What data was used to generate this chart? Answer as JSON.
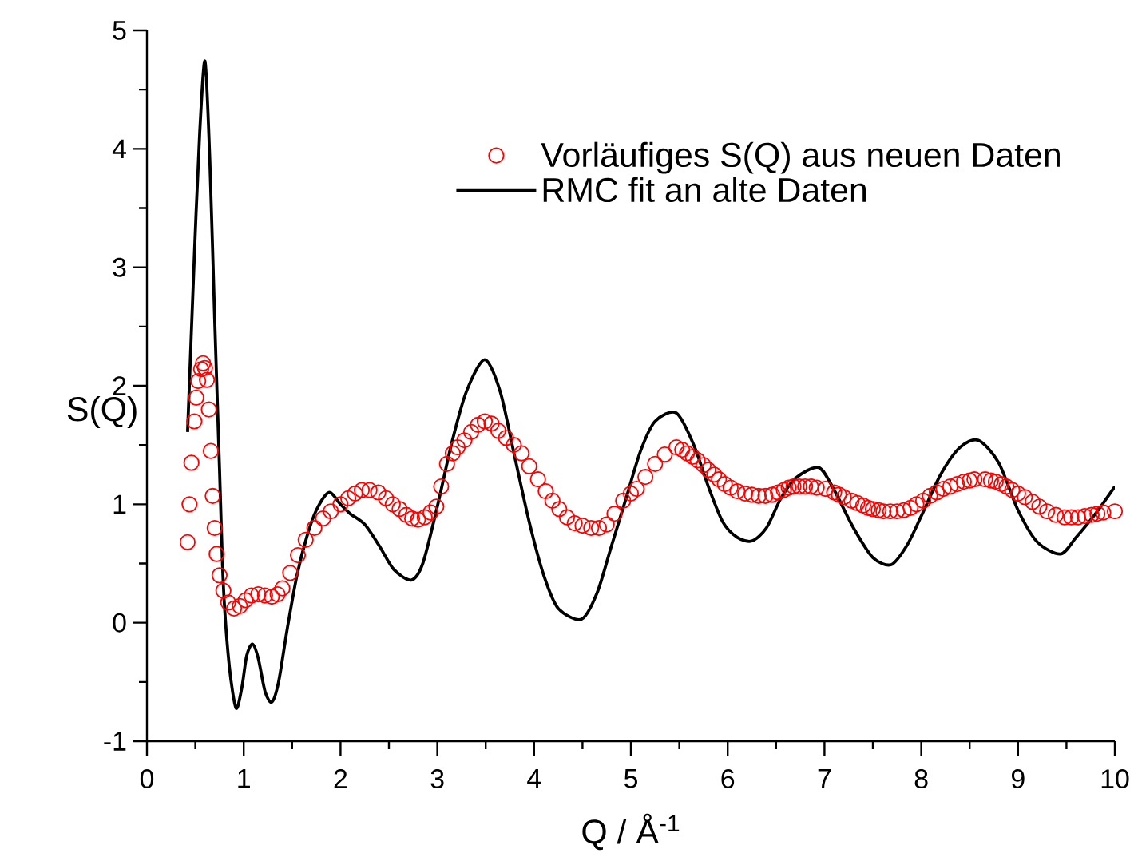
{
  "chart_data": {
    "type": "scatter",
    "xlabel": "Q / Å$^{-1}$",
    "ylabel": "S(Q)",
    "xlim": [
      0,
      10
    ],
    "ylim": [
      -1,
      5
    ],
    "xticks": [
      0,
      {
        "value": 0.5,
        "label": null
      },
      1,
      {
        "value": 1.5,
        "label": null
      },
      2,
      {
        "value": 2.5,
        "label": null
      },
      3,
      {
        "value": 3.5,
        "label": null
      },
      4,
      {
        "value": 4.5,
        "label": null
      },
      5,
      {
        "value": 5.5,
        "label": null
      },
      6,
      {
        "value": 6.5,
        "label": null
      },
      7,
      {
        "value": 7.5,
        "label": null
      },
      8,
      {
        "value": 8.5,
        "label": null
      },
      9,
      {
        "value": 9.5,
        "label": null
      },
      10
    ],
    "yticks": [
      -1,
      {
        "value": -0.5,
        "label": null
      },
      0,
      {
        "value": 0.5,
        "label": null
      },
      1,
      {
        "value": 1.5,
        "label": null
      },
      2,
      {
        "value": 2.5,
        "label": null
      },
      3,
      {
        "value": 3.5,
        "label": null
      },
      4,
      {
        "value": 4.5,
        "label": null
      },
      5
    ],
    "legend": "top right",
    "marker": "circle",
    "series": [
      {
        "name": "Vorläufiges S(Q) aus neuen Daten",
        "color": "#ff0000",
        "x": [
          0.42,
          0.44,
          0.46,
          0.49,
          0.51,
          0.53,
          0.56,
          0.58,
          0.6,
          0.62,
          0.64,
          0.66,
          0.68,
          0.7,
          0.72,
          0.75,
          0.79,
          0.84,
          0.9,
          0.96,
          1.02,
          1.08,
          1.15,
          1.22,
          1.29,
          1.35,
          1.4,
          1.48,
          1.56,
          1.64,
          1.73,
          1.82,
          1.9,
          2.0,
          2.08,
          2.15,
          2.22,
          2.3,
          2.39,
          2.47,
          2.54,
          2.61,
          2.68,
          2.74,
          2.8,
          2.87,
          2.93,
          2.99,
          3.04,
          3.1,
          3.16,
          3.21,
          3.28,
          3.35,
          3.42,
          3.49,
          3.56,
          3.63,
          3.71,
          3.79,
          3.87,
          3.95,
          4.04,
          4.12,
          4.19,
          4.26,
          4.34,
          4.42,
          4.5,
          4.59,
          4.67,
          4.75,
          4.83,
          4.92,
          5.0,
          5.06,
          5.15,
          5.25,
          5.35,
          5.47,
          5.53,
          5.58,
          5.64,
          5.69,
          5.75,
          5.8,
          5.86,
          5.91,
          5.97,
          6.03,
          6.1,
          6.18,
          6.25,
          6.32,
          6.39,
          6.46,
          6.52,
          6.58,
          6.63,
          6.68,
          6.74,
          6.8,
          6.86,
          6.92,
          7.01,
          7.1,
          7.15,
          7.2,
          7.28,
          7.34,
          7.4,
          7.45,
          7.5,
          7.56,
          7.61,
          7.68,
          7.75,
          7.82,
          7.89,
          7.95,
          8.02,
          8.09,
          8.16,
          8.23,
          8.3,
          8.37,
          8.44,
          8.5,
          8.55,
          8.66,
          8.72,
          8.77,
          8.83,
          8.88,
          8.94,
          9.0,
          9.07,
          9.15,
          9.22,
          9.3,
          9.39,
          9.48,
          9.55,
          9.62,
          9.69,
          9.76,
          9.82,
          9.88,
          10.0
        ],
        "values": [
          0.68,
          1.0,
          1.35,
          1.7,
          1.9,
          2.04,
          2.14,
          2.19,
          2.15,
          2.05,
          1.8,
          1.45,
          1.07,
          0.8,
          0.58,
          0.4,
          0.27,
          0.17,
          0.12,
          0.14,
          0.19,
          0.23,
          0.24,
          0.23,
          0.22,
          0.24,
          0.29,
          0.42,
          0.57,
          0.7,
          0.8,
          0.88,
          0.94,
          1.0,
          1.05,
          1.09,
          1.12,
          1.12,
          1.1,
          1.05,
          1.0,
          0.96,
          0.91,
          0.88,
          0.87,
          0.89,
          0.93,
          0.98,
          1.15,
          1.34,
          1.43,
          1.48,
          1.54,
          1.61,
          1.67,
          1.7,
          1.68,
          1.62,
          1.56,
          1.5,
          1.43,
          1.32,
          1.21,
          1.11,
          1.03,
          0.96,
          0.89,
          0.84,
          0.82,
          0.8,
          0.8,
          0.83,
          0.92,
          1.03,
          1.09,
          1.13,
          1.23,
          1.34,
          1.42,
          1.48,
          1.46,
          1.43,
          1.4,
          1.37,
          1.33,
          1.29,
          1.25,
          1.21,
          1.17,
          1.14,
          1.11,
          1.09,
          1.08,
          1.07,
          1.07,
          1.08,
          1.1,
          1.12,
          1.14,
          1.15,
          1.15,
          1.15,
          1.15,
          1.14,
          1.13,
          1.1,
          1.08,
          1.06,
          1.03,
          1.01,
          0.99,
          0.97,
          0.96,
          0.95,
          0.94,
          0.94,
          0.94,
          0.95,
          0.97,
          1.0,
          1.03,
          1.07,
          1.1,
          1.13,
          1.15,
          1.17,
          1.19,
          1.2,
          1.21,
          1.21,
          1.2,
          1.19,
          1.17,
          1.15,
          1.12,
          1.09,
          1.06,
          1.02,
          0.98,
          0.94,
          0.91,
          0.89,
          0.89,
          0.89,
          0.9,
          0.91,
          0.92,
          0.93,
          0.94
        ]
      },
      {
        "name": "RMC fit an alte Daten",
        "type": "line",
        "color": "#000000",
        "marker": "none",
        "line_style": "solid",
        "x": [
          0.42,
          0.49,
          0.545,
          0.6,
          0.65,
          0.7,
          0.75,
          0.79,
          0.85,
          0.92,
          0.98,
          1.03,
          1.09,
          1.15,
          1.22,
          1.29,
          1.36,
          1.45,
          1.55,
          1.65,
          1.75,
          1.88,
          2.0,
          2.1,
          2.25,
          2.4,
          2.55,
          2.73,
          2.85,
          3.0,
          3.15,
          3.3,
          3.49,
          3.65,
          3.8,
          3.95,
          4.1,
          4.25,
          4.49,
          4.65,
          4.8,
          4.95,
          5.1,
          5.25,
          5.47,
          5.65,
          5.8,
          5.95,
          6.1,
          6.25,
          6.4,
          6.55,
          6.7,
          6.94,
          7.1,
          7.3,
          7.5,
          7.69,
          7.85,
          8.0,
          8.2,
          8.4,
          8.59,
          8.8,
          9.0,
          9.2,
          9.44,
          9.6,
          9.8,
          10.0
        ],
        "values": [
          1.61,
          3.1,
          4.13,
          4.74,
          3.9,
          2.56,
          1.3,
          0.31,
          -0.36,
          -0.72,
          -0.55,
          -0.28,
          -0.18,
          -0.3,
          -0.58,
          -0.67,
          -0.5,
          -0.05,
          0.4,
          0.72,
          0.95,
          1.1,
          1.0,
          0.92,
          0.83,
          0.65,
          0.45,
          0.36,
          0.5,
          0.98,
          1.52,
          1.95,
          2.22,
          1.95,
          1.4,
          0.85,
          0.4,
          0.12,
          0.03,
          0.25,
          0.65,
          1.05,
          1.45,
          1.7,
          1.77,
          1.5,
          1.15,
          0.85,
          0.72,
          0.69,
          0.8,
          1.05,
          1.22,
          1.31,
          1.12,
          0.8,
          0.55,
          0.49,
          0.65,
          0.9,
          1.25,
          1.48,
          1.54,
          1.35,
          0.95,
          0.68,
          0.58,
          0.72,
          0.92,
          1.15
        ]
      }
    ]
  }
}
